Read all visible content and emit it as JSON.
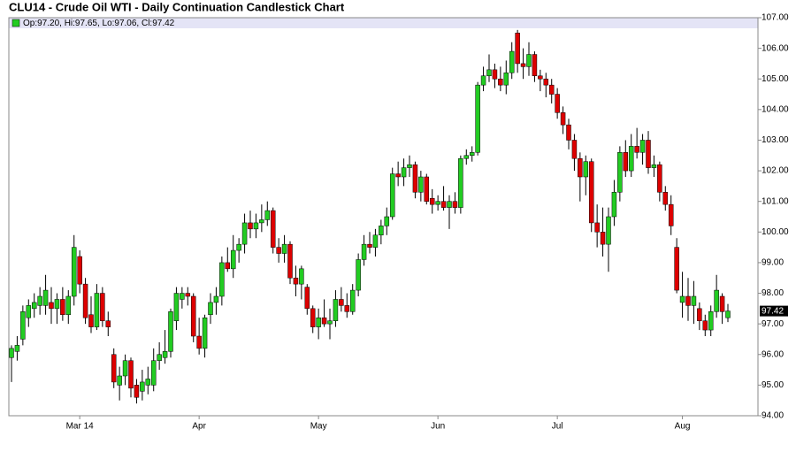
{
  "chart_data": {
    "type": "candlestick",
    "title": "CLU14 - Crude Oil WTI - Daily Continuation Candlestick Chart",
    "legend_text": "Op:97.20, Hi:97.65, Lo:97.06, Cl:97.42",
    "last_price_label": "97.42",
    "up_color": "#22cc22",
    "down_color": "#dd0000",
    "ylim": [
      94,
      107
    ],
    "yticks": [
      {
        "value": 94,
        "label": "94.00"
      },
      {
        "value": 95,
        "label": "95.00"
      },
      {
        "value": 96,
        "label": "96.00"
      },
      {
        "value": 97,
        "label": "97.00"
      },
      {
        "value": 98,
        "label": "98.00"
      },
      {
        "value": 99,
        "label": "99.00"
      },
      {
        "value": 100,
        "label": "100.00"
      },
      {
        "value": 101,
        "label": "101.00"
      },
      {
        "value": 102,
        "label": "102.00"
      },
      {
        "value": 103,
        "label": "103.00"
      },
      {
        "value": 104,
        "label": "104.00"
      },
      {
        "value": 105,
        "label": "105.00"
      },
      {
        "value": 106,
        "label": "106.00"
      },
      {
        "value": 107,
        "label": "107.00"
      }
    ],
    "grid": false,
    "categories": [
      null,
      null,
      null,
      null,
      null,
      null,
      null,
      null,
      null,
      null,
      null,
      null,
      "Mar 14",
      null,
      null,
      null,
      null,
      null,
      null,
      null,
      null,
      null,
      null,
      null,
      null,
      null,
      null,
      null,
      null,
      null,
      null,
      null,
      null,
      "Apr",
      null,
      null,
      null,
      null,
      null,
      null,
      null,
      null,
      null,
      null,
      null,
      null,
      null,
      null,
      null,
      null,
      null,
      null,
      null,
      null,
      "May",
      null,
      null,
      null,
      null,
      null,
      null,
      null,
      null,
      null,
      null,
      null,
      null,
      null,
      null,
      null,
      null,
      null,
      null,
      null,
      null,
      "Jun",
      null,
      null,
      null,
      null,
      null,
      null,
      null,
      null,
      null,
      null,
      null,
      null,
      null,
      null,
      null,
      null,
      null,
      null,
      null,
      null,
      "Jul",
      null,
      null,
      null,
      null,
      null,
      null,
      null,
      null,
      null,
      null,
      null,
      null,
      null,
      null,
      null,
      null,
      null,
      null,
      null,
      null,
      null,
      "Aug",
      null,
      null,
      null,
      null,
      null,
      null,
      null,
      null
    ],
    "open": [
      95.9,
      96.1,
      96.5,
      97.2,
      97.5,
      97.6,
      97.6,
      97.7,
      97.5,
      97.8,
      97.3,
      97.9,
      99.2,
      98.3,
      97.3,
      96.9,
      98.0,
      97.1,
      96.0,
      95.0,
      95.3,
      95.8,
      95.0,
      94.8,
      95.0,
      95.0,
      95.8,
      95.9,
      96.1,
      97.1,
      97.8,
      98.0,
      97.9,
      96.6,
      96.2,
      97.3,
      97.7,
      97.9,
      99.0,
      98.8,
      99.4,
      99.6,
      100.3,
      100.1,
      100.3,
      100.4,
      100.7,
      99.5,
      99.3,
      99.6,
      98.5,
      98.3,
      98.2,
      97.5,
      96.9,
      97.2,
      97.0,
      97.1,
      97.8,
      97.6,
      97.4,
      98.1,
      99.1,
      99.6,
      99.5,
      99.9,
      100.2,
      100.5,
      101.9,
      101.8,
      102.1,
      102.2,
      101.3,
      101.8,
      101.1,
      100.9,
      101.0,
      100.8,
      101.0,
      100.8,
      102.4,
      102.5,
      102.6,
      104.8,
      105.1,
      105.3,
      105.0,
      104.8,
      105.2,
      106.5,
      105.5,
      105.4,
      105.8,
      105.1,
      105.0,
      104.8,
      104.5,
      103.9,
      103.5,
      103.0,
      102.4,
      101.8,
      102.3,
      100.3,
      100.0,
      99.6,
      100.5,
      101.3,
      102.6,
      102.0,
      102.8,
      102.6,
      103.0,
      102.1,
      102.2,
      101.3,
      100.9,
      99.5,
      97.7,
      97.9,
      97.6,
      97.5,
      97.1,
      96.8,
      97.4,
      97.9,
      97.2
    ],
    "high": [
      96.3,
      96.6,
      97.6,
      97.8,
      98.0,
      98.2,
      98.6,
      98.2,
      98.0,
      98.2,
      98.1,
      99.9,
      99.4,
      98.5,
      97.9,
      98.3,
      98.2,
      97.4,
      96.2,
      95.6,
      96.0,
      95.9,
      95.2,
      95.5,
      95.6,
      96.2,
      96.4,
      96.8,
      97.5,
      98.2,
      98.2,
      98.2,
      98.0,
      97.2,
      97.3,
      98.0,
      98.2,
      99.2,
      99.5,
      99.9,
      99.8,
      100.6,
      100.7,
      100.6,
      100.9,
      101.0,
      100.8,
      99.8,
      99.9,
      99.7,
      98.9,
      98.9,
      98.3,
      97.6,
      97.5,
      97.8,
      97.5,
      98.1,
      98.2,
      98.0,
      98.3,
      99.3,
      99.9,
      100.0,
      100.1,
      100.4,
      100.8,
      102.1,
      102.3,
      102.4,
      102.5,
      102.3,
      102.0,
      101.9,
      101.4,
      101.2,
      101.5,
      101.2,
      101.3,
      102.5,
      102.7,
      102.8,
      104.9,
      105.4,
      105.8,
      105.5,
      105.4,
      105.6,
      106.2,
      106.6,
      106.0,
      106.2,
      105.9,
      105.3,
      105.2,
      105.0,
      104.7,
      104.1,
      103.7,
      103.2,
      102.6,
      102.5,
      102.4,
      100.9,
      100.8,
      100.8,
      101.7,
      102.8,
      103.0,
      103.2,
      103.4,
      103.2,
      103.3,
      102.5,
      102.3,
      101.5,
      101.2,
      99.8,
      98.7,
      98.5,
      98.4,
      97.7,
      97.3,
      97.6,
      98.6,
      98.0,
      97.65
    ],
    "low": [
      95.1,
      95.8,
      96.3,
      96.9,
      97.2,
      97.3,
      97.3,
      97.0,
      97.0,
      97.1,
      97.0,
      97.6,
      98.0,
      97.0,
      96.7,
      96.8,
      96.9,
      96.6,
      94.9,
      94.5,
      95.0,
      94.6,
      94.4,
      94.5,
      94.7,
      94.8,
      95.5,
      95.7,
      95.9,
      96.8,
      97.5,
      97.6,
      96.4,
      96.0,
      95.9,
      97.0,
      97.3,
      97.6,
      98.7,
      98.5,
      99.0,
      99.3,
      99.8,
      99.8,
      100.0,
      100.2,
      99.3,
      99.0,
      99.0,
      98.3,
      97.9,
      97.8,
      97.3,
      96.7,
      96.5,
      96.9,
      96.5,
      96.9,
      97.4,
      97.2,
      97.3,
      97.9,
      98.9,
      99.3,
      99.2,
      99.6,
      99.9,
      100.4,
      101.5,
      101.5,
      101.8,
      101.1,
      101.0,
      100.9,
      100.6,
      100.7,
      100.7,
      100.1,
      100.6,
      100.6,
      102.2,
      102.3,
      102.5,
      104.6,
      104.9,
      104.7,
      104.6,
      104.5,
      105.0,
      105.2,
      105.0,
      105.1,
      104.9,
      104.6,
      104.4,
      104.2,
      103.7,
      103.2,
      102.7,
      102.0,
      101.0,
      101.2,
      100.0,
      99.5,
      99.2,
      98.7,
      100.2,
      101.0,
      101.8,
      101.8,
      102.4,
      102.2,
      101.9,
      101.8,
      101.0,
      100.7,
      99.9,
      98.0,
      97.2,
      97.1,
      97.0,
      96.8,
      96.6,
      96.6,
      97.2,
      97.0,
      97.06
    ],
    "close": [
      96.2,
      96.3,
      97.4,
      97.6,
      97.7,
      97.9,
      98.1,
      97.5,
      97.8,
      97.3,
      97.9,
      99.5,
      98.3,
      97.2,
      96.9,
      98.0,
      97.1,
      96.9,
      95.1,
      95.3,
      95.8,
      94.9,
      94.6,
      95.1,
      95.2,
      95.8,
      96.0,
      96.1,
      97.4,
      98.0,
      98.0,
      97.9,
      96.6,
      96.2,
      97.2,
      97.7,
      97.9,
      99.0,
      98.8,
      99.4,
      99.6,
      100.3,
      100.1,
      100.3,
      100.4,
      100.7,
      99.5,
      99.3,
      99.6,
      98.5,
      98.3,
      98.8,
      97.5,
      96.9,
      97.2,
      97.0,
      97.1,
      97.8,
      97.6,
      97.4,
      98.1,
      99.1,
      99.6,
      99.5,
      99.9,
      100.2,
      100.5,
      101.9,
      101.8,
      102.1,
      102.2,
      101.3,
      101.8,
      101.0,
      100.9,
      101.0,
      100.8,
      101.0,
      100.8,
      102.4,
      102.5,
      102.6,
      104.8,
      105.1,
      105.3,
      105.0,
      104.8,
      105.2,
      105.9,
      105.5,
      105.4,
      105.8,
      105.1,
      105.0,
      104.8,
      104.5,
      103.9,
      103.5,
      103.0,
      102.4,
      101.8,
      102.3,
      100.3,
      100.0,
      99.6,
      100.5,
      101.3,
      102.6,
      102.0,
      102.8,
      102.6,
      103.0,
      102.1,
      102.2,
      101.3,
      100.9,
      100.2,
      98.1,
      97.9,
      97.6,
      97.9,
      97.1,
      96.8,
      97.4,
      98.1,
      97.4,
      97.42
    ]
  }
}
